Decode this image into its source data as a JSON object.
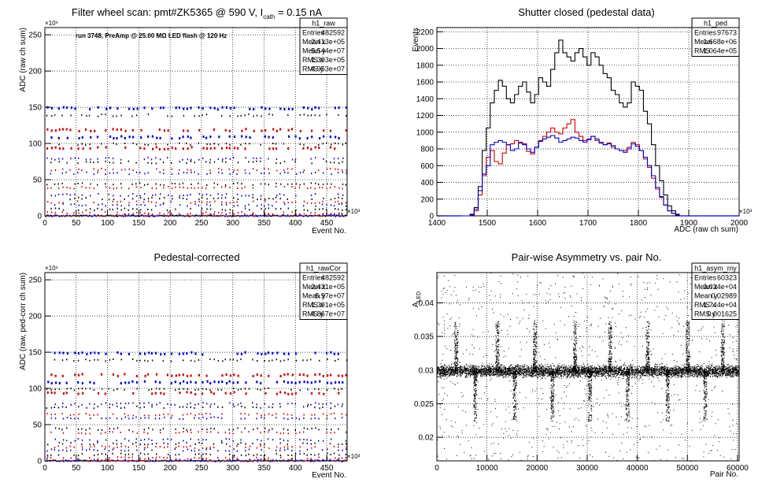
{
  "chart_data": [
    {
      "id": "p1",
      "type": "scatter",
      "title": "Filter wheel scan: pmt#ZK5365 @   590 V, I",
      "title_sub": "cath",
      "title_tail": " = 0.15 nA",
      "annotation": "run 3748, PreAmp @ 25.00 MΩ LED flash @  120 Hz",
      "xlabel": "Event No.",
      "ylabel": "ADC (raw ch sum)",
      "xlim": [
        0,
        482.6
      ],
      "ylim": [
        0,
        260
      ],
      "x_exponent": "×10³",
      "y_exponent": "×10⁶",
      "xticks": [
        0,
        50,
        100,
        150,
        200,
        250,
        300,
        350,
        400,
        450
      ],
      "yticks": [
        0,
        50,
        100,
        150,
        200,
        250
      ],
      "grid": true,
      "stats": {
        "name": "h1_raw",
        "rows": [
          [
            "Entries",
            "482592"
          ],
          [
            "Mean x",
            "2.413e+05"
          ],
          [
            "Mean y",
            "5.544e+07"
          ],
          [
            "RMS x",
            "1.393e+05"
          ],
          [
            "RMS y",
            "4.953e+07"
          ]
        ]
      },
      "levels": [
        2,
        5,
        10,
        16,
        20,
        25,
        30,
        40,
        45,
        60,
        65,
        75,
        80,
        95,
        100,
        110,
        120,
        140,
        150
      ],
      "series_colors": [
        "#0000cc",
        "#cc0000",
        "#000000"
      ]
    },
    {
      "id": "p2",
      "type": "line",
      "title": "Shutter closed (pedestal data)",
      "xlabel": "ADC (raw ch sum)",
      "ylabel": "Events",
      "xlim": [
        1400,
        2000
      ],
      "ylim": [
        0,
        2250
      ],
      "x_exponent": "×10³",
      "xticks": [
        1400,
        1500,
        1600,
        1700,
        1800,
        1900,
        2000
      ],
      "yticks": [
        0,
        200,
        400,
        600,
        800,
        1000,
        1200,
        1400,
        1600,
        1800,
        2000,
        2200
      ],
      "grid": true,
      "stats": {
        "name": "h1_ped",
        "rows": [
          [
            "Entries",
            "97673"
          ],
          [
            "Mean",
            "1.668e+06"
          ],
          [
            "RMS",
            "1.064e+05"
          ]
        ]
      },
      "bin_start": 1450,
      "bin_width": 8,
      "series": [
        {
          "color": "#000000",
          "values": [
            0,
            0,
            20,
            100,
            350,
            780,
            1050,
            1350,
            1500,
            1620,
            1550,
            1400,
            1350,
            1450,
            1550,
            1600,
            1480,
            1350,
            1450,
            1650,
            1600,
            1550,
            1750,
            1950,
            2100,
            1950,
            1900,
            1850,
            1950,
            2000,
            1900,
            1800,
            1950,
            1900,
            1800,
            1700,
            1650,
            1500,
            1450,
            1350,
            1300,
            1350,
            1600,
            1550,
            1500,
            1250,
            1100,
            850,
            600,
            420,
            250,
            120,
            60,
            20
          ]
        },
        {
          "color": "#cc0000",
          "values": [
            0,
            0,
            10,
            60,
            250,
            480,
            700,
            780,
            650,
            620,
            750,
            850,
            860,
            900,
            880,
            860,
            770,
            740,
            820,
            900,
            950,
            1000,
            1050,
            1000,
            980,
            1050,
            1100,
            1150,
            1000,
            950,
            900,
            920,
            950,
            900,
            880,
            850,
            870,
            820,
            800,
            780,
            780,
            820,
            880,
            850,
            780,
            680,
            580,
            450,
            320,
            220,
            130,
            60,
            30,
            10
          ]
        },
        {
          "color": "#0000cc",
          "values": [
            0,
            0,
            15,
            80,
            300,
            500,
            600,
            850,
            880,
            900,
            880,
            850,
            780,
            800,
            870,
            850,
            800,
            760,
            820,
            890,
            920,
            940,
            960,
            930,
            880,
            900,
            920,
            940,
            930,
            900,
            880,
            910,
            950,
            920,
            870,
            850,
            860,
            840,
            800,
            780,
            760,
            800,
            860,
            830,
            780,
            700,
            600,
            480,
            340,
            230,
            130,
            60,
            30,
            10
          ]
        }
      ]
    },
    {
      "id": "p3",
      "type": "scatter",
      "title": "Pedestal-corrected",
      "xlabel": "Event No.",
      "ylabel": "ADC (raw, ped-corr ch sum)",
      "xlim": [
        0,
        482.6
      ],
      "ylim": [
        0,
        260
      ],
      "x_exponent": "×10³",
      "y_exponent": "×10⁶",
      "xticks": [
        0,
        50,
        100,
        150,
        200,
        250,
        300,
        350,
        400,
        450
      ],
      "yticks": [
        0,
        50,
        100,
        150,
        200,
        250
      ],
      "grid": true,
      "stats": {
        "name": "h1_rawCor",
        "rows": [
          [
            "Entries",
            "482592"
          ],
          [
            "Mean x",
            "2.431e+05"
          ],
          [
            "Mean y",
            "5.97e+07"
          ],
          [
            "RMS x",
            "1.391e+05"
          ],
          [
            "RMS y",
            "4.867e+07"
          ]
        ]
      },
      "levels": [
        2,
        5,
        10,
        16,
        20,
        25,
        30,
        40,
        45,
        60,
        65,
        75,
        80,
        95,
        100,
        110,
        120,
        140,
        150
      ],
      "series_colors": [
        "#0000cc",
        "#cc0000",
        "#000000"
      ]
    },
    {
      "id": "p4",
      "type": "scatter",
      "title": "Pair-wise Asymmetry vs. pair No.",
      "xlabel": "Pair No.",
      "ylabel": "A",
      "ylabel_sub": "LED",
      "xlim": [
        0,
        60323
      ],
      "ylim": [
        0.0165,
        0.0445
      ],
      "xticks": [
        0,
        10000,
        20000,
        30000,
        40000,
        50000,
        60000
      ],
      "yticks": [
        0.02,
        0.025,
        0.03,
        0.035,
        0.04
      ],
      "grid": true,
      "stats": {
        "name": "h1_asym_my",
        "rows": [
          [
            "Entries",
            "60323"
          ],
          [
            "Mean x",
            "3.024e+04"
          ],
          [
            "Mean y",
            "0.02989"
          ],
          [
            "RMS x",
            "1.744e+04"
          ],
          [
            "RMS y",
            "0.001625"
          ]
        ]
      },
      "center": 0.02989,
      "band_halfwidth": 0.0006,
      "spike_positions": [
        3800,
        7600,
        12000,
        15500,
        19500,
        23000,
        27500,
        30500,
        34500,
        38000,
        42000,
        46000,
        50000,
        53500,
        57000
      ]
    }
  ]
}
